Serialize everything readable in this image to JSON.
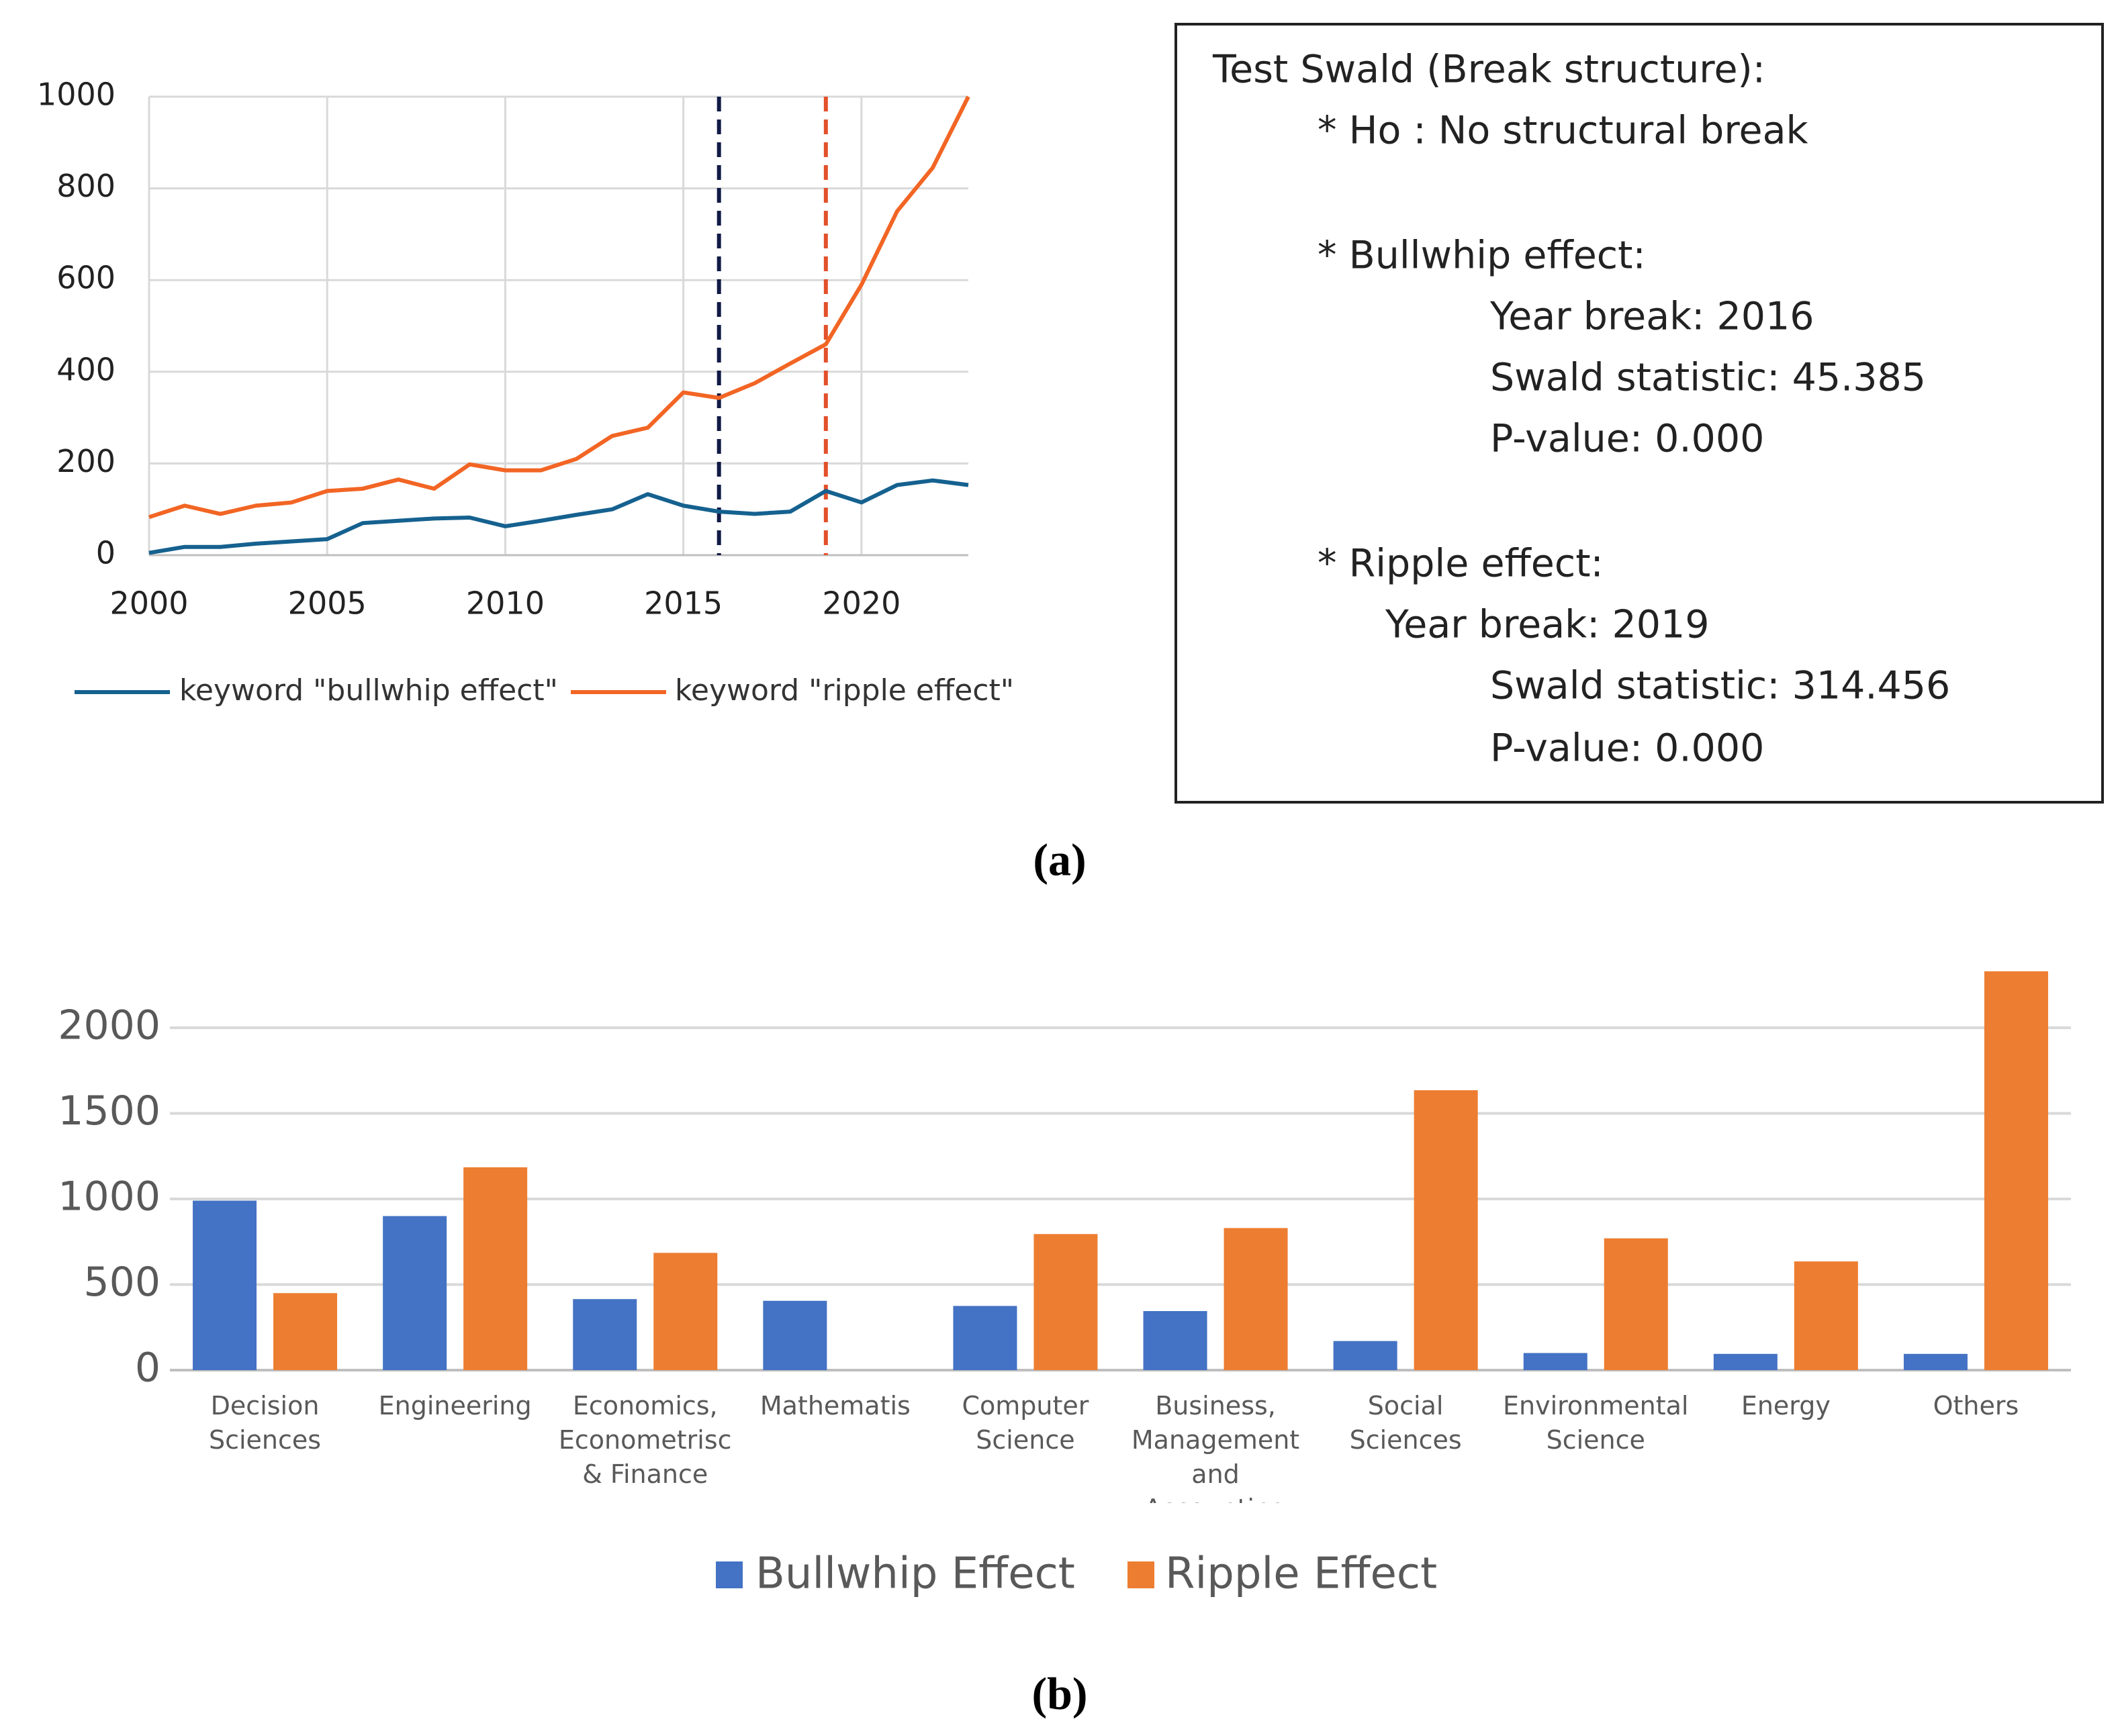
{
  "chart_data": [
    {
      "type": "line",
      "x": [
        2000,
        2001,
        2002,
        2003,
        2004,
        2005,
        2006,
        2007,
        2008,
        2009,
        2010,
        2011,
        2012,
        2013,
        2014,
        2015,
        2016,
        2017,
        2018,
        2019,
        2020,
        2021,
        2022,
        2023
      ],
      "series": [
        {
          "name": "keyword \"bullwhip effect\"",
          "color": "#15618f",
          "values": [
            5,
            18,
            18,
            25,
            30,
            35,
            70,
            75,
            80,
            82,
            63,
            75,
            88,
            100,
            133,
            108,
            95,
            90,
            95,
            140,
            115,
            153,
            163,
            153
          ]
        },
        {
          "name": "keyword \"ripple effect\"",
          "color": "#f26524",
          "values": [
            83,
            108,
            90,
            108,
            115,
            140,
            145,
            165,
            145,
            198,
            185,
            185,
            210,
            260,
            278,
            355,
            343,
            375,
            418,
            460,
            590,
            750,
            845,
            1000
          ]
        }
      ],
      "vlines": [
        {
          "x": 2016,
          "color": "#101a45"
        },
        {
          "x": 2019,
          "color": "#e2512a"
        }
      ],
      "xlim": [
        2000,
        2023
      ],
      "xticks": [
        2000,
        2005,
        2010,
        2015,
        2020
      ],
      "ylim": [
        0,
        1000
      ],
      "yticks": [
        0,
        200,
        400,
        600,
        800,
        1000
      ],
      "grid": true,
      "legend": "bottom"
    },
    {
      "type": "bar",
      "categories": [
        "Decision Sciences",
        "Engineering",
        "Economics, Econometrisc & Finance",
        "Mathematis",
        "Computer Science",
        "Business, Management and Accounting",
        "Social Sciences",
        "Environmental Science",
        "Energy",
        "Others"
      ],
      "series": [
        {
          "name": "Bullwhip Effect",
          "color": "#4472c4",
          "values": [
            990,
            900,
            415,
            405,
            375,
            345,
            170,
            100,
            95,
            95
          ]
        },
        {
          "name": "Ripple Effect",
          "color": "#ed7d31",
          "values": [
            450,
            1185,
            685,
            0,
            795,
            830,
            1635,
            770,
            635,
            2330
          ]
        }
      ],
      "ylim": [
        0,
        2400
      ],
      "yticks": [
        0,
        500,
        1000,
        1500,
        2000
      ],
      "grid": true,
      "legend": "bottom"
    }
  ],
  "text_box": {
    "title": "Test Swald (Break structure):",
    "lines": [
      "* Ho : No structural break",
      "* Bullwhip effect:",
      "Year break: 2016",
      "Swald statistic: 45.385",
      "P-value: 0.000",
      "* Ripple effect:",
      "Year break: 2019",
      "Swald statistic: 314.456",
      "P-value: 0.000"
    ]
  },
  "captions": [
    "(a)",
    "(b)"
  ]
}
